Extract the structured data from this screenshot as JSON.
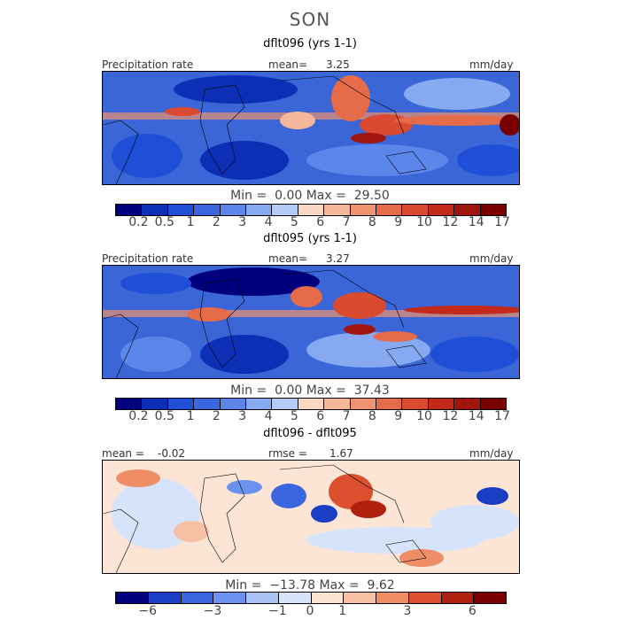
{
  "season": "SON",
  "colors": {
    "scale": [
      "#00007e",
      "#0c2fb5",
      "#1f4fd6",
      "#3a66e0",
      "#5d86ea",
      "#86a9f2",
      "#b4cbf8",
      "#f9d8c4",
      "#f5b79a",
      "#ee926f",
      "#e66b49",
      "#d94a30",
      "#c42a1c",
      "#a1150f",
      "#7a0000"
    ],
    "diff_scale": [
      "#00007e",
      "#1a3fc4",
      "#3a66e0",
      "#6a92ee",
      "#a9c3f6",
      "#d6e4fb",
      "#fde5d6",
      "#f7bfa3",
      "#ee8d66",
      "#dc5030",
      "#b0200f",
      "#7a0000"
    ]
  },
  "panel1": {
    "title": "dflt096 (yrs 1-1)",
    "var_label": "Precipitation rate",
    "mean_label": "mean=",
    "mean_value": "3.25",
    "units": "mm/day",
    "min_label": "Min =",
    "min_value": "0.00",
    "max_label": "Max =",
    "max_value": "29.50"
  },
  "panel2": {
    "title": "dflt095 (yrs 1-1)",
    "var_label": "Precipitation rate",
    "mean_label": "mean=",
    "mean_value": "3.27",
    "units": "mm/day",
    "min_label": "Min =",
    "min_value": "0.00",
    "max_label": "Max =",
    "max_value": "37.43"
  },
  "panel3": {
    "title": "dflt096 - dflt095",
    "mean_label": "mean =",
    "mean_value": "-0.02",
    "rmse_label": "rmse =",
    "rmse_value": "1.67",
    "units": "mm/day",
    "min_label": "Min =",
    "min_value": "−13.78",
    "max_label": "Max =",
    "max_value": "9.62"
  },
  "ticks_abs": [
    "0.2",
    "0.5",
    "1",
    "2",
    "3",
    "4",
    "5",
    "6",
    "7",
    "8",
    "9",
    "10",
    "12",
    "14",
    "17"
  ],
  "ticks_diff": [
    "−6",
    "−3",
    "−1",
    "0",
    "1",
    "3",
    "6"
  ]
}
